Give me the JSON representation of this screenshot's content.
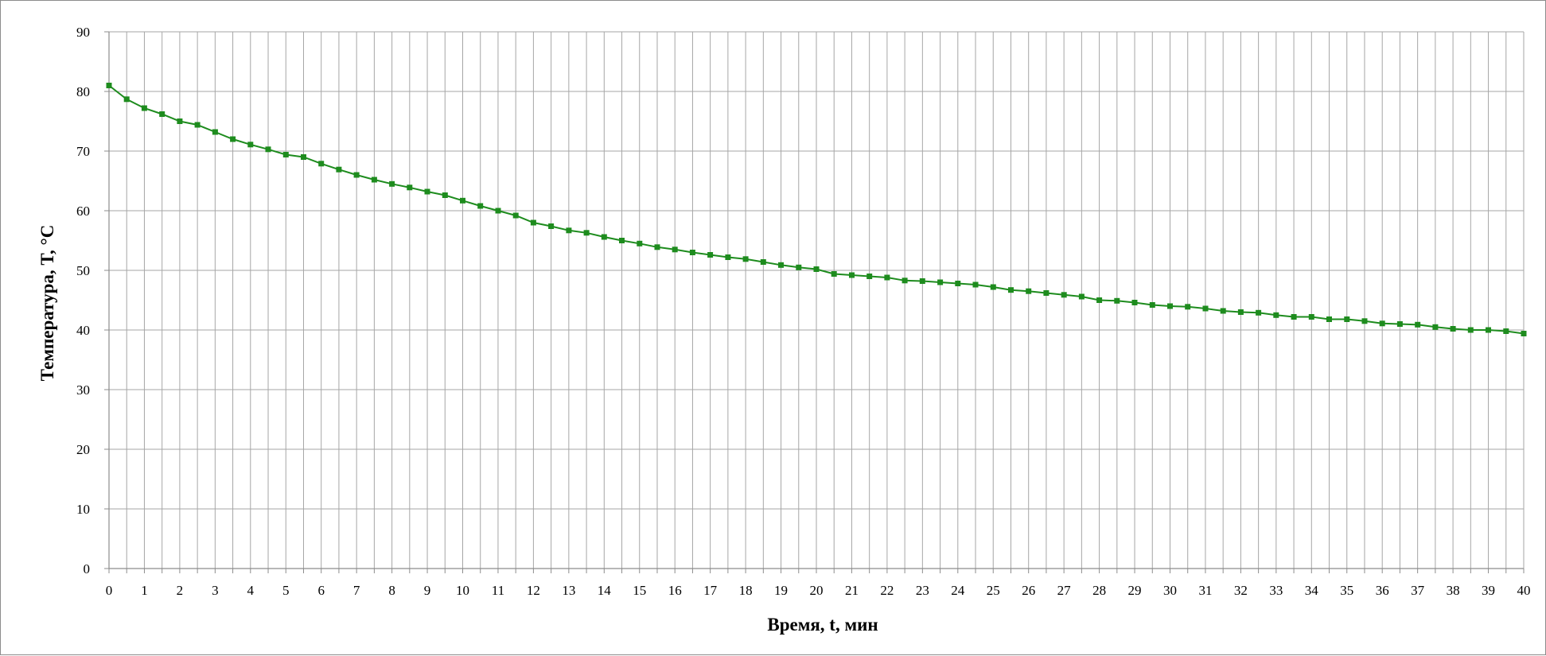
{
  "chart_data": {
    "type": "line",
    "title": "",
    "xlabel": "Время, t, мин",
    "ylabel": "Температура, T, °C",
    "xlim": [
      0,
      40
    ],
    "ylim": [
      0,
      90
    ],
    "x_ticks": [
      0,
      1,
      2,
      3,
      4,
      5,
      6,
      7,
      8,
      9,
      10,
      11,
      12,
      13,
      14,
      15,
      16,
      17,
      18,
      19,
      20,
      21,
      22,
      23,
      24,
      25,
      26,
      27,
      28,
      29,
      30,
      31,
      32,
      33,
      34,
      35,
      36,
      37,
      38,
      39,
      40
    ],
    "y_ticks": [
      0,
      10,
      20,
      30,
      40,
      50,
      60,
      70,
      80,
      90
    ],
    "grid": true,
    "legend": "none",
    "colors": {
      "series": "#1e8c1e",
      "grid": "#a6a6a6",
      "frame": "#8c8c8c"
    },
    "series": [
      {
        "marker": "square",
        "x": [
          0,
          0.5,
          1,
          1.5,
          2,
          2.5,
          3,
          3.5,
          4,
          4.5,
          5,
          5.5,
          6,
          6.5,
          7,
          7.5,
          8,
          8.5,
          9,
          9.5,
          10,
          10.5,
          11,
          11.5,
          12,
          12.5,
          13,
          13.5,
          14,
          14.5,
          15,
          15.5,
          16,
          16.5,
          17,
          17.5,
          18,
          18.5,
          19,
          19.5,
          20,
          20.5,
          21,
          21.5,
          22,
          22.5,
          23,
          23.5,
          24,
          24.5,
          25,
          25.5,
          26,
          26.5,
          27,
          27.5,
          28,
          28.5,
          29,
          29.5,
          30,
          30.5,
          31,
          31.5,
          32,
          32.5,
          33,
          33.5,
          34,
          34.5,
          35,
          35.5,
          36,
          36.5,
          37,
          37.5,
          38,
          38.5,
          39,
          39.5,
          40
        ],
        "y": [
          81.0,
          78.7,
          77.2,
          76.2,
          75.0,
          74.4,
          73.2,
          72.0,
          71.1,
          70.3,
          69.4,
          69.0,
          67.9,
          66.9,
          66.0,
          65.2,
          64.5,
          63.9,
          63.2,
          62.6,
          61.7,
          60.8,
          60.0,
          59.2,
          58.0,
          57.4,
          56.7,
          56.3,
          55.6,
          55.0,
          54.5,
          53.9,
          53.5,
          53.0,
          52.6,
          52.2,
          51.9,
          51.4,
          50.9,
          50.5,
          50.2,
          49.4,
          49.2,
          49.0,
          48.8,
          48.3,
          48.2,
          48.0,
          47.8,
          47.6,
          47.2,
          46.7,
          46.5,
          46.2,
          45.9,
          45.6,
          45.0,
          44.9,
          44.6,
          44.2,
          44.0,
          43.9,
          43.6,
          43.2,
          43.0,
          42.9,
          42.5,
          42.2,
          42.2,
          41.8,
          41.8,
          41.5,
          41.1,
          41.0,
          40.9,
          40.5,
          40.2,
          40.0,
          40.0,
          39.8,
          39.4
        ]
      }
    ]
  }
}
